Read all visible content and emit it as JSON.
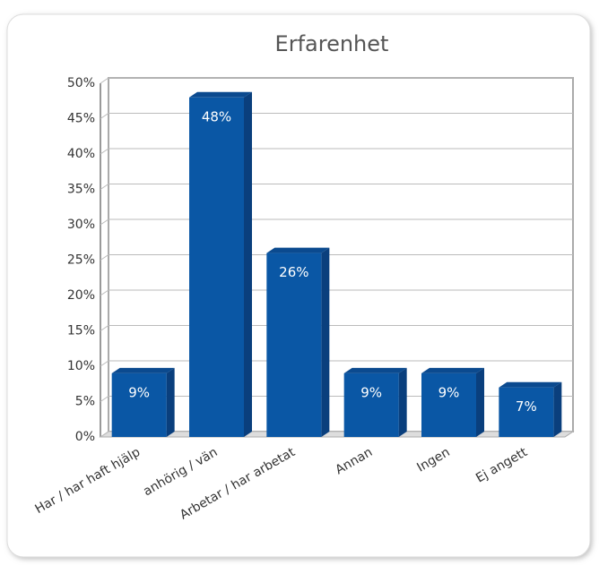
{
  "chart_data": {
    "type": "bar",
    "title": "Erfarenhet",
    "categories": [
      "Har / har haft hjälp",
      "anhörig / vän",
      "Arbetar / har arbetat",
      "Annan",
      "Ingen",
      "Ej angett"
    ],
    "values": [
      9,
      48,
      26,
      9,
      9,
      7
    ],
    "value_labels": [
      "9%",
      "48%",
      "26%",
      "9%",
      "9%",
      "7%"
    ],
    "color": "#0a57a5",
    "ylim": [
      0,
      50
    ],
    "yticks": [
      {
        "value": 0,
        "label": "0%"
      },
      {
        "value": 5,
        "label": "5%"
      },
      {
        "value": 10,
        "label": "10%"
      },
      {
        "value": 15,
        "label": "15%"
      },
      {
        "value": 20,
        "label": "20%"
      },
      {
        "value": 25,
        "label": "25%"
      },
      {
        "value": 30,
        "label": "30%"
      },
      {
        "value": 35,
        "label": "35%"
      },
      {
        "value": 40,
        "label": "40%"
      },
      {
        "value": 45,
        "label": "45%"
      },
      {
        "value": 50,
        "label": "50%"
      }
    ],
    "grid": true
  }
}
